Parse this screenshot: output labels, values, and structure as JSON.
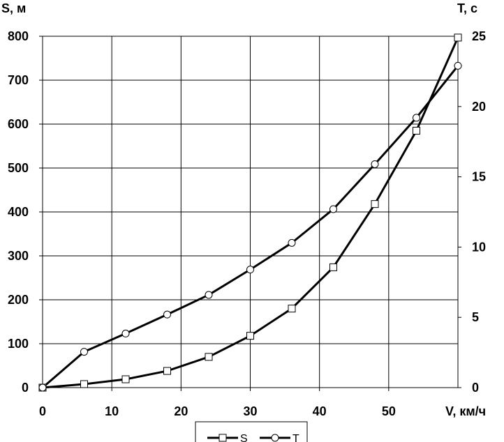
{
  "chart_data": {
    "type": "line",
    "x_axis": {
      "label": "V, км/ч",
      "range": [
        0,
        60
      ],
      "ticks": [
        0,
        10,
        20,
        30,
        40,
        50
      ]
    },
    "y_axis_left": {
      "label": "S, м",
      "range": [
        0,
        800
      ],
      "ticks": [
        0,
        100,
        200,
        300,
        400,
        500,
        600,
        700,
        800
      ]
    },
    "y_axis_right": {
      "label": "T, с",
      "range": [
        0,
        25
      ],
      "ticks": [
        0,
        5,
        10,
        15,
        20,
        25
      ]
    },
    "grid": true,
    "legend": {
      "position": "bottom-center",
      "entries": [
        "S",
        "T"
      ]
    },
    "series": [
      {
        "name": "S",
        "axis": "left",
        "marker": "square",
        "color": "#000000",
        "x": [
          0,
          6,
          12,
          18,
          24,
          30,
          36,
          42,
          48,
          54,
          60
        ],
        "values": [
          0,
          8,
          19,
          38,
          70,
          118,
          180,
          274,
          418,
          585,
          797
        ]
      },
      {
        "name": "T",
        "axis": "right",
        "marker": "circle",
        "color": "#000000",
        "x": [
          0,
          6,
          12,
          18,
          24,
          30,
          36,
          42,
          48,
          54,
          60
        ],
        "values": [
          0,
          2.55,
          3.85,
          5.2,
          6.6,
          8.4,
          10.3,
          12.7,
          15.9,
          19.2,
          22.9
        ]
      }
    ]
  }
}
